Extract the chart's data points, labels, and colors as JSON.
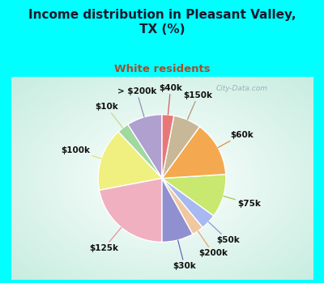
{
  "title": "Income distribution in Pleasant Valley,\nTX (%)",
  "subtitle": "White residents",
  "outer_bg": "#00FFFF",
  "title_color": "#1a1a2e",
  "subtitle_color": "#a05030",
  "labels": [
    "> $200k",
    "$10k",
    "$100k",
    "$125k",
    "$30k",
    "$200k",
    "$50k",
    "$75k",
    "$60k",
    "$150k",
    "$40k"
  ],
  "sizes": [
    9,
    3,
    16,
    22,
    8,
    3,
    4,
    11,
    14,
    7,
    3
  ],
  "colors": [
    "#b0a0d0",
    "#a0d8a0",
    "#f0f080",
    "#f0b0c0",
    "#9090d0",
    "#f0c8a0",
    "#a8b8f0",
    "#c8e870",
    "#f4a850",
    "#c8b898",
    "#e87878"
  ],
  "line_colors": [
    "#9090b8",
    "#c8d890",
    "#e8e060",
    "#e890a0",
    "#6868b8",
    "#e0a870",
    "#8898d8",
    "#a8c850",
    "#d89040",
    "#b09878",
    "#d06060"
  ],
  "startangle": 90,
  "wedge_lw": 1.0,
  "wedge_ec": "#ffffff",
  "label_fontsize": 7.5,
  "watermark": "City-Data.com"
}
